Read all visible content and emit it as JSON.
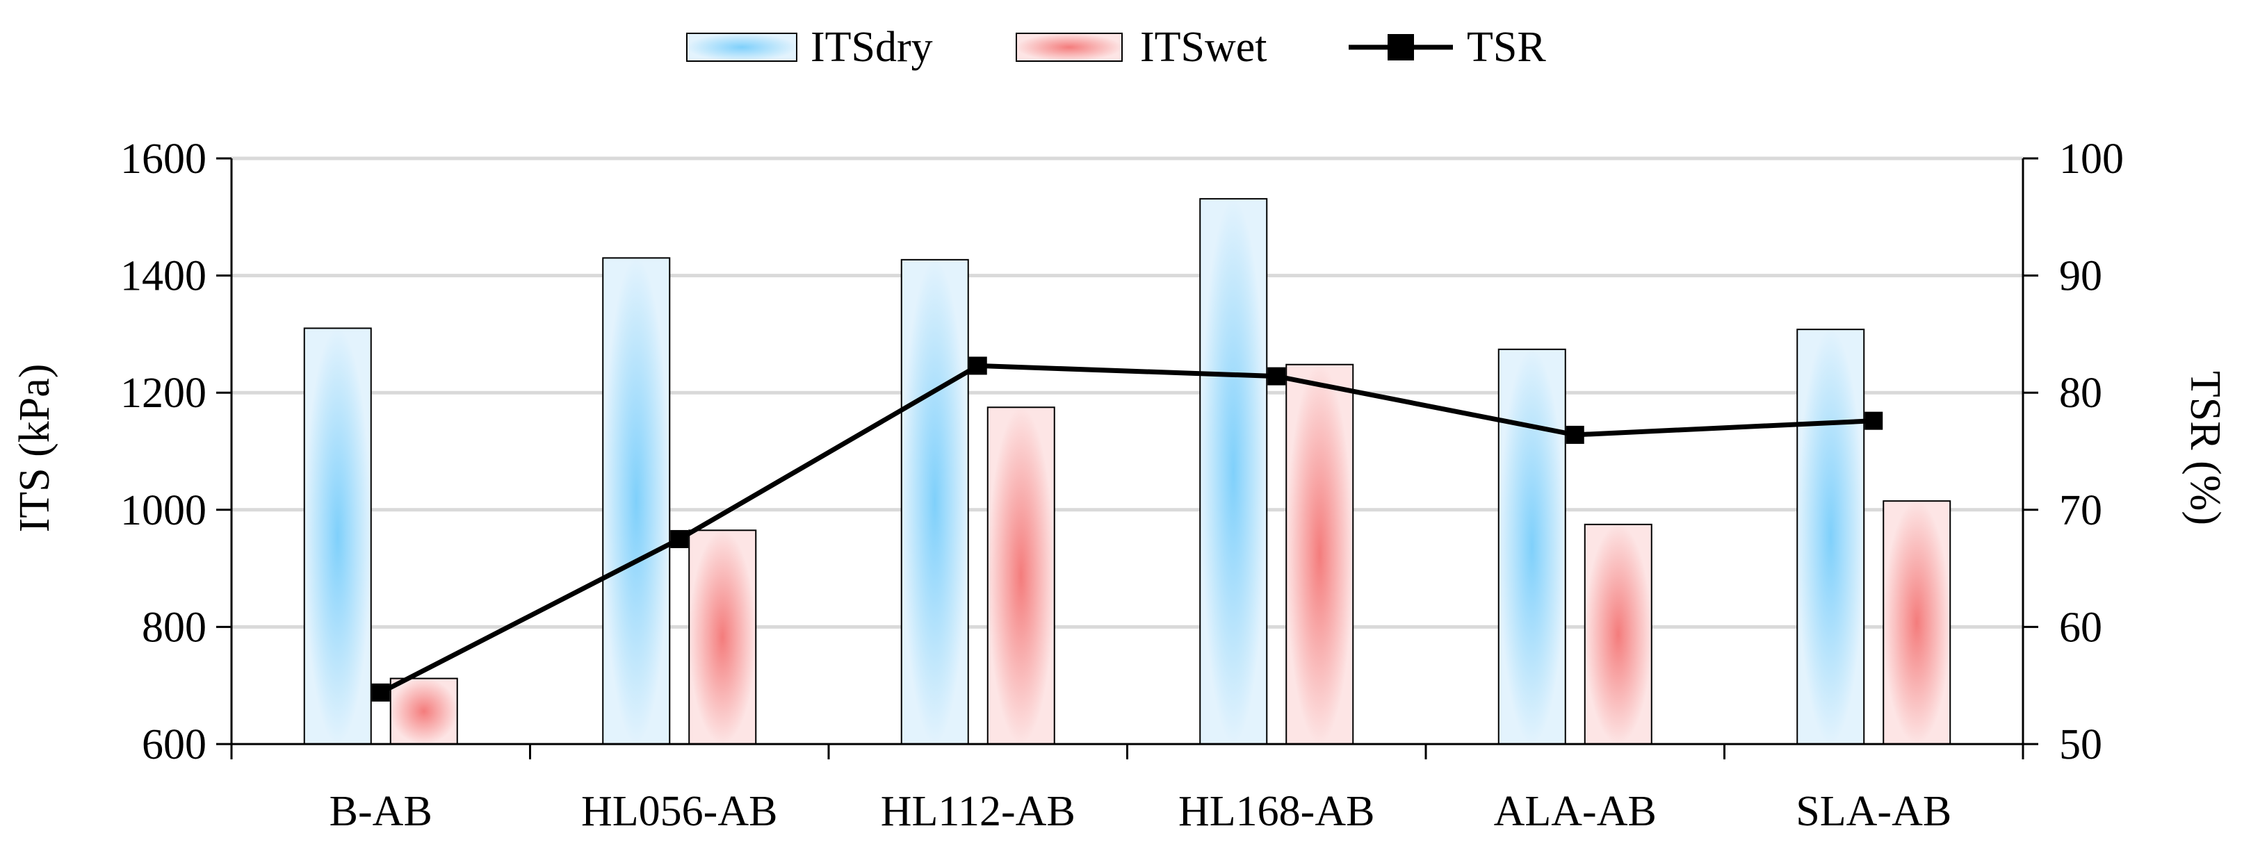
{
  "chart_data": {
    "type": "bar",
    "categories": [
      "B-AB",
      "HL056-AB",
      "HL112-AB",
      "HL168-AB",
      "ALA-AB",
      "SLA-AB"
    ],
    "series": [
      {
        "name": "ITSdry",
        "kind": "bar",
        "axis": "left",
        "values": [
          1310,
          1430,
          1427,
          1531,
          1274,
          1308
        ]
      },
      {
        "name": "ITSwet",
        "kind": "bar",
        "axis": "left",
        "values": [
          712,
          965,
          1175,
          1248,
          975,
          1015
        ]
      },
      {
        "name": "TSR",
        "kind": "line",
        "axis": "right",
        "values": [
          54.4,
          67.5,
          82.3,
          81.4,
          76.4,
          77.6
        ]
      }
    ],
    "ylabel": "ITS (kPa)",
    "y2label": "TSR (%)",
    "ylim": [
      600,
      1600
    ],
    "y2lim": [
      50,
      100
    ],
    "yticks": [
      "600",
      "800",
      "1000",
      "1200",
      "1400",
      "1600"
    ],
    "y2ticks": [
      "50",
      "60",
      "70",
      "80",
      "90",
      "100"
    ],
    "grid": true,
    "legend_position": "top-center",
    "colors": {
      "dry_center": "#7fd0fb",
      "dry_edge": "#e3f3fd",
      "wet_center": "#f47c7c",
      "wet_edge": "#fde5e5",
      "line": "#000000",
      "grid": "#d9d9d9"
    }
  }
}
